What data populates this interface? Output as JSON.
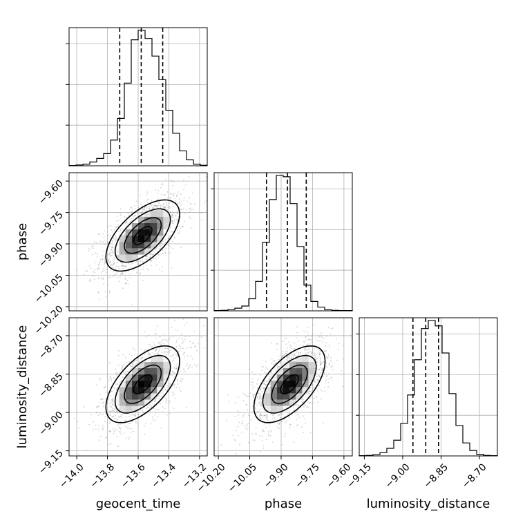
{
  "chart_data": {
    "type": "corner",
    "parameters": [
      {
        "name": "geocent_time",
        "range": [
          -14.05,
          -13.15
        ],
        "ticks": [
          -14.0,
          -13.8,
          -13.6,
          -13.4,
          -13.2
        ],
        "tick_labels": [
          "−14.0",
          "−13.8",
          "−13.6",
          "−13.4",
          "−13.2"
        ]
      },
      {
        "name": "phase",
        "range": [
          -10.22,
          -9.56
        ],
        "ticks": [
          -10.2,
          -10.05,
          -9.9,
          -9.75,
          -9.6
        ],
        "tick_labels": [
          "−10.20",
          "−10.05",
          "−9.90",
          "−9.75",
          "−9.60"
        ]
      },
      {
        "name": "luminosity_distance",
        "range": [
          -9.17,
          -8.63
        ],
        "ticks": [
          -9.15,
          -9.0,
          -8.85,
          -8.7
        ],
        "tick_labels": [
          "−9.15",
          "−9.00",
          "−8.85",
          "−8.70"
        ]
      }
    ],
    "histograms": [
      {
        "param": "geocent_time",
        "bin_start": -14.05,
        "bin_width": 0.045,
        "counts": [
          1,
          3,
          6,
          14,
          27,
          45,
          95,
          175,
          305,
          465,
          500,
          470,
          405,
          318,
          205,
          120,
          55,
          22,
          6,
          2
        ],
        "quantiles": [
          -13.72,
          -13.58,
          -13.44
        ]
      },
      {
        "param": "phase",
        "bin_start": -10.22,
        "bin_width": 0.033,
        "counts": [
          1,
          2,
          5,
          10,
          18,
          45,
          110,
          255,
          415,
          505,
          500,
          400,
          240,
          96,
          35,
          14,
          4,
          2,
          1,
          1
        ],
        "quantiles": [
          -9.97,
          -9.87,
          -9.78
        ]
      },
      {
        "param": "luminosity_distance",
        "bin_start": -9.17,
        "bin_width": 0.027,
        "counts": [
          1,
          2,
          5,
          12,
          28,
          58,
          120,
          225,
          355,
          470,
          500,
          480,
          380,
          230,
          112,
          48,
          20,
          6,
          2,
          1
        ],
        "quantiles": [
          -8.96,
          -8.91,
          -8.86
        ]
      }
    ],
    "joint_2d": [
      {
        "x": "geocent_time",
        "y": "phase",
        "mean": [
          -13.57,
          -9.86
        ],
        "sigma": [
          0.12,
          0.085
        ],
        "corr": 0.6
      },
      {
        "x": "geocent_time",
        "y": "luminosity_distance",
        "mean": [
          -13.57,
          -8.89
        ],
        "sigma": [
          0.12,
          0.075
        ],
        "corr": 0.6
      },
      {
        "x": "phase",
        "y": "luminosity_distance",
        "mean": [
          -9.86,
          -8.89
        ],
        "sigma": [
          0.085,
          0.075
        ],
        "corr": 0.6
      }
    ],
    "contour_levels_sigma": [
      0.5,
      1.0,
      1.5,
      2.0
    ],
    "grid": true
  }
}
